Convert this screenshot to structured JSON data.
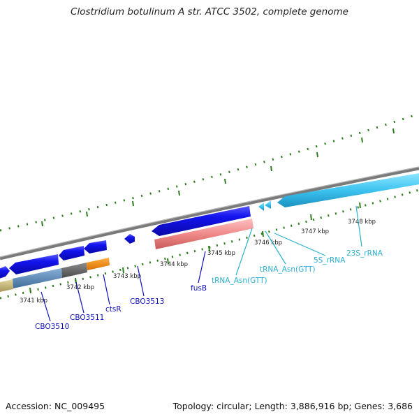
{
  "title": "Clostridium botulinum A str. ATCC 3502, complete genome",
  "footer": {
    "accession": "Accession: NC_009495",
    "summary": "Topology: circular; Length: 3,886,916 bp; Genes: 3,686"
  },
  "colors": {
    "backbone": "#808080",
    "tick_major": "#2d7d1e",
    "tick_minor": "#2d7d1e",
    "cds_blue": "#1414ee",
    "rRNA_light_blue": "#3cc3f0",
    "rRNA_pink": "#f08a8a",
    "gene_label_blue": "#1010b8",
    "rna_label_cyan": "#2ab0d0",
    "tan": "#c8b878",
    "steel_blue": "#5a88b8",
    "dark_grey": "#666666",
    "orange": "#f28c00"
  },
  "scale_labels": [
    "3741 kbp",
    "3742 kbp",
    "3743 kbp",
    "3744 kbp",
    "3745 kbp",
    "3746 kbp",
    "3747 kbp",
    "3748 kbp"
  ],
  "gene_labels": [
    "CBO3510",
    "CBO3511",
    "ctsR",
    "CBO3513",
    "fusB"
  ],
  "rna_labels": [
    "tRNA_Asn(GTT)",
    "tRNA_Asn(GTT)",
    "5S_rRNA",
    "23S_rRNA"
  ]
}
